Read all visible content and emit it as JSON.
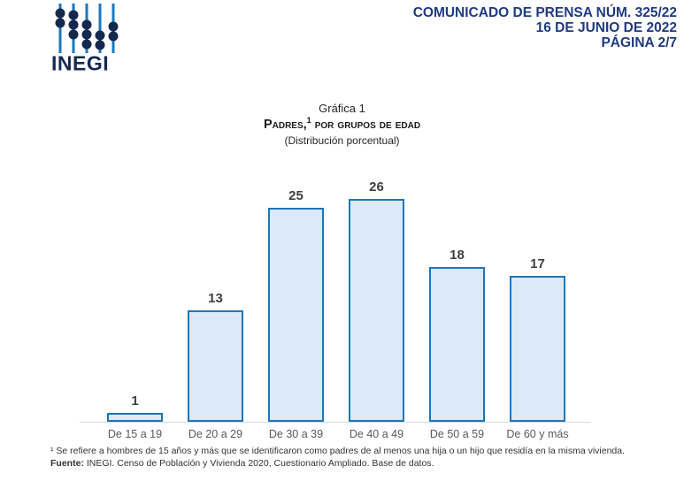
{
  "logo": {
    "wordmark": "INEGI"
  },
  "header": {
    "line1": "COMUNICADO DE PRENSA NÚM. 325/22",
    "line2": "16 DE JUNIO DE 2022",
    "line3": "PÁGINA 2/7"
  },
  "chart": {
    "label": "Gráfica 1",
    "title_prefix": "Padres,",
    "title_sup": "1",
    "title_suffix": " por grupos de edad",
    "subtitle": "(Distribución porcentual)"
  },
  "chart_data": {
    "type": "bar",
    "title": "Padres, por grupos de edad",
    "subtitle": "(Distribución porcentual)",
    "categories": [
      "De 15 a 19",
      "De 20 a 29",
      "De 30 a 39",
      "De 40 a 49",
      "De 50 a 59",
      "De 60 y más"
    ],
    "values": [
      1,
      13,
      25,
      26,
      18,
      17
    ],
    "xlabel": "",
    "ylabel": "",
    "ylim": [
      0,
      28
    ],
    "grid": "off",
    "legend": "none",
    "bar_fill": "#DCE9F6",
    "bar_border": "#1C76BC",
    "value_label_color": "#3F3F3F",
    "tick_label_color": "#595959",
    "axis_line_color": "#D9D9D9"
  },
  "footnotes": {
    "note1": "¹ Se refiere a hombres de 15 años y más que se identificaron como padres de al menos una hija o un hijo que residía en la misma vivienda.",
    "fuente_label": "Fuente:",
    "fuente_text": " INEGI. Censo de Población y Vivienda 2020, Cuestionario Ampliado. Base de datos."
  },
  "colors": {
    "header_navy": "#1F3B80",
    "logo_dot_navy": "#15294E",
    "logo_line_blue": "#1878BE"
  }
}
